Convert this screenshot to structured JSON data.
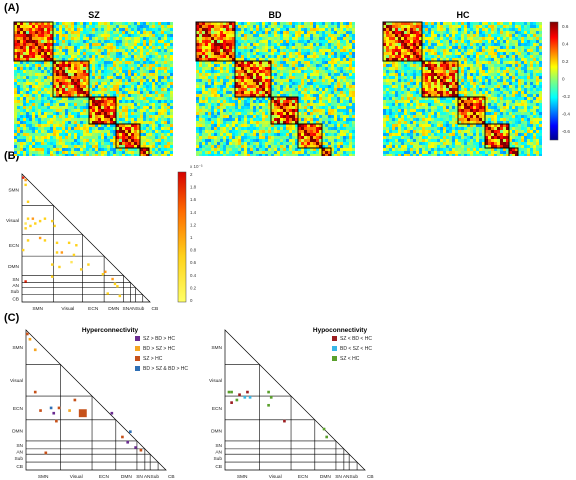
{
  "panel_a": {
    "label": "(A)",
    "matrices": [
      {
        "title": "SZ",
        "seed": 11
      },
      {
        "title": "BD",
        "seed": 23
      },
      {
        "title": "HC",
        "seed": 37
      }
    ],
    "x_tick_labels": [
      "SMN",
      "Visual",
      "ECN",
      "DMN",
      "SN",
      "AN",
      "Sub",
      "CB"
    ],
    "colorbar_ticks": [
      "0.6",
      "0.4",
      "0.2",
      "0",
      "-0.2",
      "-0.4",
      "-0.6"
    ]
  },
  "panel_b": {
    "label": "(B)",
    "y_tick_labels": [
      "SMN",
      "Visual",
      "ECN",
      "DMN",
      "SN",
      "AN",
      "Sub",
      "CB"
    ],
    "x_tick_labels": [
      "SMN",
      "Visual",
      "ECN",
      "DMN",
      "SN",
      "AN",
      "Sub",
      "CB"
    ],
    "colorbar_exponent": "x 10⁻³",
    "colorbar_ticks": [
      "2",
      "1.8",
      "1.6",
      "1.4",
      "1.2",
      "1",
      "0.8",
      "0.6",
      "0.4",
      "0.2",
      "0"
    ]
  },
  "panel_c": {
    "label": "(C)",
    "left": {
      "title": "Hyperconnectivity",
      "legend": [
        {
          "text": "SZ > BD > HC",
          "color": "#6a2c91"
        },
        {
          "text": "BD > SZ > HC",
          "color": "#f5a623"
        },
        {
          "text": "SZ > HC",
          "color": "#c6511a"
        },
        {
          "text": "BD > SZ & BD > HC",
          "color": "#2e6fb5"
        }
      ]
    },
    "right": {
      "title": "Hypoconnectivity",
      "legend": [
        {
          "text": "SZ < BD < HC",
          "color": "#9b1d20"
        },
        {
          "text": "BD < SZ < HC",
          "color": "#39b6e6"
        },
        {
          "text": "SZ < HC",
          "color": "#5aa02c"
        }
      ]
    },
    "y_tick_labels": [
      "SMN",
      "Visual",
      "ECN",
      "DMN",
      "SN",
      "AN",
      "Sub",
      "CB"
    ],
    "x_tick_labels": [
      "SMN",
      "Visual",
      "ECN",
      "DMN",
      "SN",
      "AN",
      "Sub",
      "CB"
    ]
  },
  "colors": {
    "box_outline": "#000000",
    "triangle_line": "#000000"
  }
}
